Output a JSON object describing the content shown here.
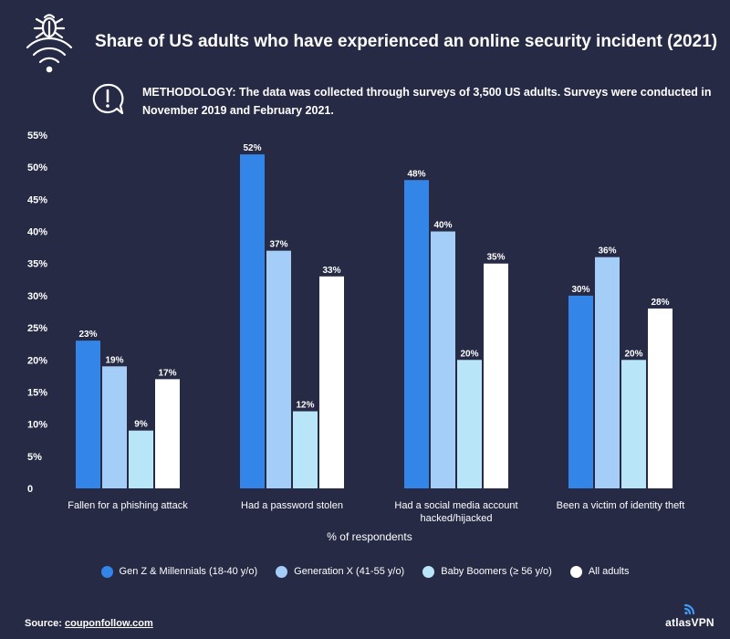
{
  "header": {
    "title": "Share of US adults who have experienced an online security incident (2021)",
    "icon": "bug-wifi-icon",
    "methodology": "METHODOLOGY: The data was collected through surveys of 3,500 US adults. Surveys were conducted in November 2019 and February 2021.",
    "methodology_icon": "speech-bubble-exclamation-icon"
  },
  "footer": {
    "source_label": "Source:",
    "source_link": "couponfollow.com",
    "brand": "atlasVPN",
    "brand_icon": "atlas-signal-icon"
  },
  "colors": {
    "background": "#262a45",
    "gen_z": "#3385e8",
    "gen_x": "#a4cdf8",
    "boomers": "#b8e6f8",
    "all": "#ffffff"
  },
  "chart_data": {
    "type": "bar",
    "xlabel": "% of respondents",
    "ylabel": "",
    "ylim": [
      0,
      55
    ],
    "yticks": [
      "0",
      "5%",
      "10%",
      "15%",
      "20%",
      "25%",
      "30%",
      "35%",
      "40%",
      "45%",
      "50%",
      "55%"
    ],
    "grid": false,
    "legend_position": "bottom",
    "categories": [
      [
        "Fallen for a phishing attack"
      ],
      [
        "Had a password stolen"
      ],
      [
        "Had a social media account",
        "hacked/hijacked"
      ],
      [
        "Been a victim of identity theft"
      ]
    ],
    "series": [
      {
        "name": "Gen Z & Millennials (18-40 y/o)",
        "color": "#3385e8",
        "values": [
          23,
          52,
          48,
          30
        ]
      },
      {
        "name": "Generation X (41-55 y/o)",
        "color": "#a4cdf8",
        "values": [
          19,
          37,
          40,
          36
        ]
      },
      {
        "name": "Baby Boomers (≥ 56 y/o)",
        "color": "#b8e6f8",
        "values": [
          9,
          12,
          20,
          20
        ]
      },
      {
        "name": "All adults",
        "color": "#ffffff",
        "values": [
          17,
          33,
          35,
          28
        ]
      }
    ]
  }
}
